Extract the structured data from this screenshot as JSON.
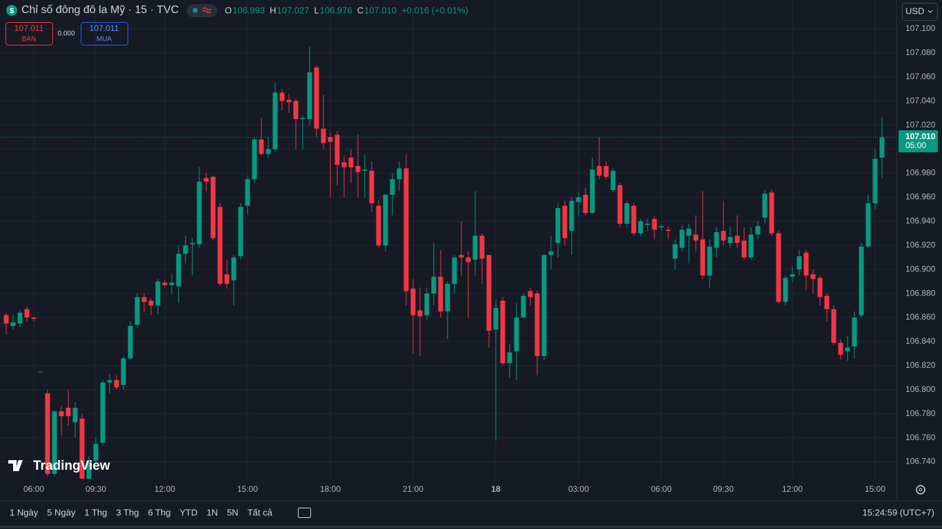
{
  "header": {
    "title": "Chỉ số đông đô la Mỹ · 15 · TVC",
    "ohlc": [
      {
        "key": "O",
        "value": "106.993"
      },
      {
        "key": "H",
        "value": "107.027"
      },
      {
        "key": "L",
        "value": "106.976"
      },
      {
        "key": "C",
        "value": "107.010"
      }
    ],
    "change": "+0.016 (+0.01%)"
  },
  "trade": {
    "sell_price": "107.011",
    "sell_label": "BÁN",
    "spread": "0.000",
    "buy_price": "107.011",
    "buy_label": "MUA"
  },
  "currency": "USD",
  "last_price_label": "107.010",
  "countdown": "05:00",
  "logo": "TradingView",
  "ranges": [
    "1 Ngày",
    "5 Ngày",
    "1 Thg",
    "3 Thg",
    "6 Thg",
    "YTD",
    "1N",
    "5N",
    "Tất cả"
  ],
  "clock": "15:24:59 (UTC+7)",
  "chart_data": {
    "type": "candlestick",
    "up_color": "#089981",
    "down_color": "#f23645",
    "grid": true,
    "ylim": [
      106.726,
      107.124
    ],
    "yticks": [
      {
        "value": 107.1,
        "label": "107.100"
      },
      {
        "value": 107.08,
        "label": "107.080"
      },
      {
        "value": 107.06,
        "label": "107.060"
      },
      {
        "value": 107.04,
        "label": "107.040"
      },
      {
        "value": 107.02,
        "label": "107.020"
      },
      {
        "value": 107.0,
        "label": "107.000"
      },
      {
        "value": 106.98,
        "label": "106.980"
      },
      {
        "value": 106.96,
        "label": "106.960"
      },
      {
        "value": 106.94,
        "label": "106.940"
      },
      {
        "value": 106.92,
        "label": "106.920"
      },
      {
        "value": 106.9,
        "label": "106.900"
      },
      {
        "value": 106.88,
        "label": "106.880"
      },
      {
        "value": 106.86,
        "label": "106.860"
      },
      {
        "value": 106.84,
        "label": "106.840"
      },
      {
        "value": 106.82,
        "label": "106.820"
      },
      {
        "value": 106.8,
        "label": "106.800"
      },
      {
        "value": 106.78,
        "label": "106.780"
      },
      {
        "value": 106.76,
        "label": "106.760"
      },
      {
        "value": 106.74,
        "label": "106.740"
      }
    ],
    "categories": [
      null,
      null,
      null,
      null,
      "06:00",
      null,
      null,
      null,
      null,
      null,
      null,
      null,
      null,
      "09:30",
      null,
      null,
      null,
      null,
      null,
      null,
      null,
      null,
      null,
      "12:00",
      null,
      null,
      null,
      null,
      null,
      null,
      null,
      null,
      null,
      null,
      null,
      "15:00",
      null,
      null,
      null,
      null,
      null,
      null,
      null,
      null,
      null,
      null,
      null,
      "18:00",
      null,
      null,
      null,
      null,
      null,
      null,
      null,
      null,
      null,
      null,
      null,
      "21:00",
      null,
      null,
      null,
      null,
      null,
      null,
      null,
      null,
      null,
      null,
      null,
      "18",
      null,
      null,
      null,
      null,
      null,
      null,
      null,
      null,
      null,
      null,
      null,
      "03:00",
      null,
      null,
      null,
      null,
      null,
      null,
      null,
      null,
      null,
      null,
      null,
      "06:00",
      null,
      null,
      null,
      null,
      null,
      null,
      null,
      null,
      "09:30",
      null,
      null,
      null,
      null,
      null,
      null,
      null,
      null,
      null,
      "12:00",
      null,
      null,
      null,
      null,
      null,
      null,
      null,
      null,
      null,
      null,
      null,
      "15:00",
      null
    ],
    "open": [
      106.862,
      106.853,
      106.855,
      106.867,
      106.86,
      106.815,
      106.797,
      106.73,
      106.782,
      106.785,
      106.773,
      106.776,
      106.726,
      106.741,
      106.756,
      106.806,
      106.808,
      106.804,
      106.826,
      106.854,
      106.877,
      106.874,
      106.87,
      106.889,
      106.887,
      106.886,
      106.913,
      106.921,
      106.921,
      106.976,
      106.977,
      106.952,
      106.896,
      106.891,
      106.911,
      106.953,
      106.975,
      107.008,
      106.996,
      107.0,
      107.047,
      107.041,
      107.04,
      107.025,
      107.025,
      107.068,
      107.017,
      107.01,
      107.012,
      106.989,
      106.993,
      106.986,
      106.982,
      106.982,
      106.953,
      106.92,
      106.962,
      106.975,
      106.984,
      106.884,
      106.866,
      106.862,
      106.88,
      106.894,
      106.865,
      106.888,
      106.912,
      106.91,
      106.908,
      106.928,
      106.912,
      106.85,
      106.874,
      106.822,
      106.832,
      106.86,
      106.882,
      106.88,
      106.828,
      106.912,
      106.922,
      106.953,
      106.932,
      106.956,
      106.962,
      106.947,
      106.986,
      106.986,
      106.966,
      106.97,
      106.938,
      106.953,
      106.93,
      106.937,
      106.942,
      106.935,
      106.933,
      106.909,
      106.918,
      106.928,
      106.929,
      106.925,
      106.895,
      106.918,
      106.932,
      106.922,
      106.928,
      106.924,
      106.91,
      106.929,
      106.943,
      106.964,
      106.93,
      106.873,
      106.894,
      106.9,
      106.914,
      106.896,
      106.893,
      106.878,
      106.867,
      106.839,
      106.832,
      106.836,
      106.862,
      106.919,
      106.955,
      106.993
    ],
    "high": [
      106.864,
      106.862,
      106.866,
      106.869,
      106.861,
      106.815,
      106.8,
      106.783,
      106.787,
      106.8,
      106.79,
      106.78,
      106.745,
      106.76,
      106.808,
      106.813,
      106.812,
      106.828,
      106.857,
      106.88,
      106.88,
      106.876,
      106.892,
      106.891,
      106.896,
      106.92,
      106.928,
      106.926,
      106.985,
      106.98,
      106.978,
      106.955,
      106.908,
      106.912,
      106.955,
      106.978,
      107.01,
      107.026,
      107.01,
      107.055,
      107.05,
      107.046,
      107.042,
      107.028,
      107.085,
      107.07,
      107.045,
      107.014,
      107.015,
      106.995,
      107.0,
      107.012,
      106.995,
      106.99,
      106.958,
      106.963,
      106.98,
      106.99,
      106.995,
      106.892,
      106.885,
      106.885,
      106.922,
      106.916,
      106.89,
      106.912,
      106.94,
      106.915,
      106.965,
      106.93,
      106.912,
      106.875,
      106.877,
      106.838,
      106.872,
      106.88,
      106.885,
      106.882,
      106.913,
      106.928,
      106.955,
      106.957,
      106.96,
      106.965,
      106.968,
      106.993,
      107.01,
      106.99,
      106.984,
      106.972,
      106.957,
      106.955,
      106.942,
      106.942,
      106.944,
      106.938,
      106.936,
      106.925,
      106.937,
      106.938,
      106.945,
      106.965,
      106.925,
      106.935,
      106.957,
      106.935,
      106.945,
      106.935,
      106.935,
      106.94,
      106.966,
      106.966,
      106.932,
      106.895,
      106.902,
      106.916,
      106.916,
      106.9,
      106.895,
      106.88,
      106.87,
      106.842,
      106.845,
      106.865,
      106.922,
      106.962,
      107.0,
      107.027
    ],
    "low": [
      106.846,
      106.85,
      106.852,
      106.857,
      106.857,
      106.815,
      106.728,
      106.728,
      106.762,
      106.77,
      106.76,
      106.722,
      106.722,
      106.74,
      106.754,
      106.797,
      106.8,
      106.8,
      106.825,
      106.852,
      106.865,
      106.862,
      106.863,
      106.885,
      106.88,
      106.872,
      106.905,
      106.895,
      106.918,
      106.965,
      106.924,
      106.886,
      106.884,
      106.87,
      106.908,
      106.946,
      106.972,
      106.995,
      106.993,
      106.998,
      107.032,
      107.03,
      107.0,
      107.0,
      107.02,
      107.01,
      107.0,
      106.96,
      106.97,
      106.96,
      106.972,
      106.96,
      106.96,
      106.948,
      106.918,
      106.915,
      106.945,
      106.965,
      106.87,
      106.83,
      106.828,
      106.858,
      106.87,
      106.86,
      106.842,
      106.88,
      106.895,
      106.86,
      106.895,
      106.888,
      106.835,
      106.758,
      106.82,
      106.81,
      106.808,
      106.86,
      106.87,
      106.812,
      106.825,
      106.9,
      106.91,
      106.92,
      106.912,
      106.944,
      106.945,
      106.946,
      106.975,
      106.975,
      106.964,
      106.935,
      106.935,
      106.928,
      106.928,
      106.932,
      106.925,
      106.932,
      106.925,
      106.9,
      106.915,
      106.905,
      106.915,
      106.892,
      106.885,
      106.91,
      106.92,
      106.918,
      106.918,
      106.908,
      106.908,
      106.925,
      106.938,
      106.928,
      106.871,
      106.87,
      106.89,
      106.895,
      106.883,
      106.88,
      106.87,
      106.857,
      106.837,
      106.825,
      106.824,
      106.826,
      106.86,
      106.918,
      106.95,
      106.976
    ],
    "close": [
      106.855,
      106.856,
      106.864,
      106.86,
      106.859,
      106.815,
      106.73,
      106.782,
      106.778,
      106.778,
      106.785,
      106.726,
      106.741,
      106.755,
      106.806,
      106.808,
      106.802,
      106.826,
      106.853,
      106.877,
      106.873,
      106.87,
      106.89,
      106.887,
      106.889,
      106.913,
      106.92,
      106.922,
      106.973,
      106.973,
      106.926,
      106.888,
      106.888,
      106.91,
      106.952,
      106.975,
      107.008,
      106.996,
      107.0,
      107.047,
      107.04,
      107.039,
      107.025,
      107.026,
      107.064,
      107.017,
      107.005,
      107.006,
      106.987,
      106.985,
      106.985,
      106.981,
      106.983,
      106.955,
      106.92,
      106.962,
      106.975,
      106.984,
      106.882,
      106.862,
      106.861,
      106.88,
      106.894,
      106.865,
      106.888,
      106.91,
      106.91,
      106.906,
      106.928,
      106.909,
      106.849,
      106.868,
      106.822,
      106.831,
      106.86,
      106.878,
      106.877,
      106.828,
      106.912,
      106.915,
      106.951,
      106.926,
      106.957,
      106.96,
      106.947,
      106.983,
      106.978,
      106.977,
      106.982,
      106.938,
      106.955,
      106.93,
      106.94,
      106.938,
      106.933,
      106.936,
      106.932,
      106.921,
      106.933,
      106.934,
      106.924,
      106.895,
      106.919,
      106.931,
      106.924,
      106.927,
      106.922,
      106.91,
      106.929,
      106.936,
      106.963,
      106.93,
      106.873,
      106.893,
      106.896,
      106.911,
      106.895,
      106.892,
      106.877,
      106.867,
      106.839,
      106.829,
      106.835,
      106.86,
      106.919,
      106.955,
      106.992,
      107.01
    ]
  }
}
